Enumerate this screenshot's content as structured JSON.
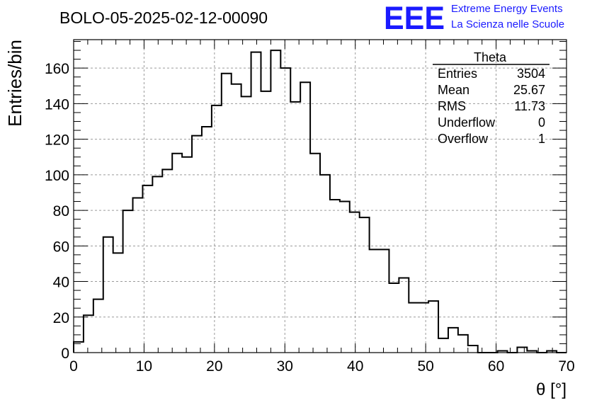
{
  "title": "BOLO-05-2025-02-12-00090",
  "logo": {
    "mark": "EEE",
    "line1": "Extreme Energy Events",
    "line2": "La Scienza nelle Scuole",
    "color": "#1a1aff"
  },
  "chart_data": {
    "type": "histogram",
    "title": "BOLO-05-2025-02-12-00090",
    "xlabel": "θ [°]",
    "ylabel": "Entries/bin",
    "xlim": [
      0,
      70
    ],
    "ylim": [
      0,
      176
    ],
    "xticks": [
      0,
      10,
      20,
      30,
      40,
      50,
      60,
      70
    ],
    "yticks": [
      0,
      20,
      40,
      60,
      80,
      100,
      120,
      140,
      160
    ],
    "grid": true,
    "bin_width": 1.4,
    "values": [
      6,
      21,
      30,
      65,
      56,
      80,
      87,
      94,
      99,
      103,
      112,
      110,
      122,
      127,
      139,
      157,
      151,
      144,
      169,
      147,
      170,
      160,
      141,
      152,
      112,
      100,
      86,
      85,
      79,
      76,
      58,
      58,
      39,
      42,
      28,
      28,
      29,
      8,
      14,
      10,
      4,
      0,
      0,
      1,
      0,
      3,
      1,
      0,
      1,
      0
    ],
    "stats": {
      "name": "Theta",
      "rows": [
        {
          "label": "Entries",
          "value": "3504"
        },
        {
          "label": "Mean",
          "value": "25.67"
        },
        {
          "label": "RMS",
          "value": "11.73"
        },
        {
          "label": "Underflow",
          "value": "0"
        },
        {
          "label": "Overflow",
          "value": "1"
        }
      ]
    }
  }
}
